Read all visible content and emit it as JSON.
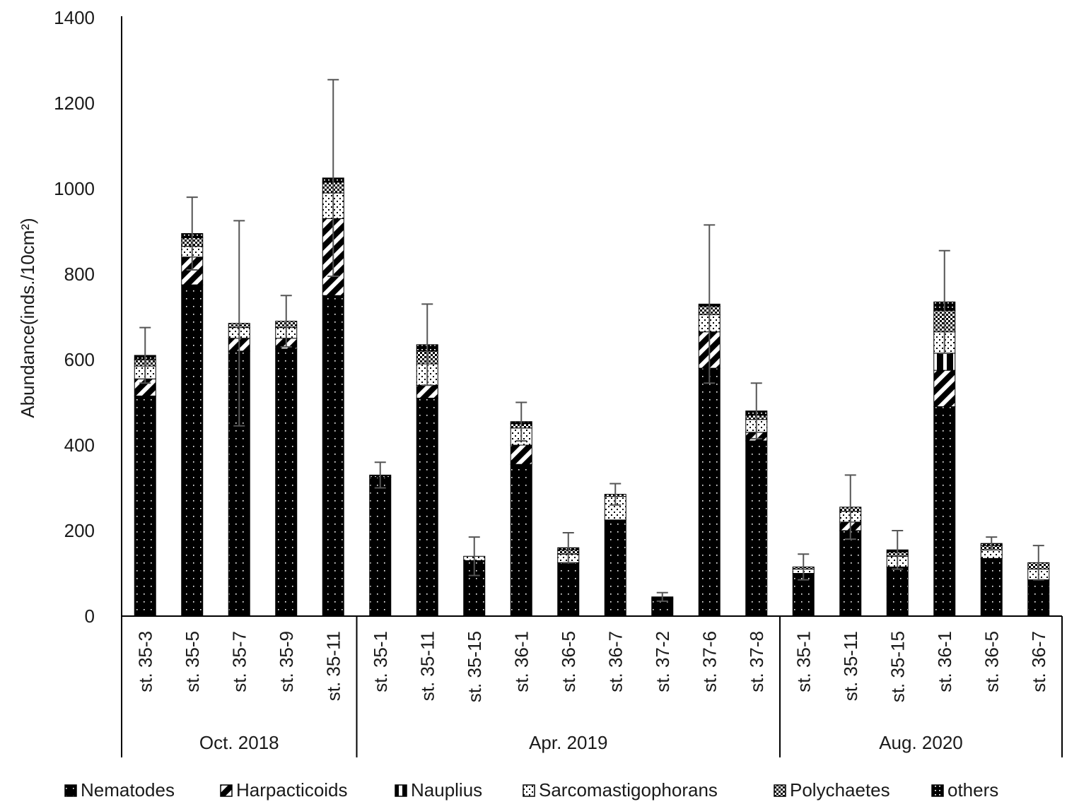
{
  "chart_data": {
    "type": "bar",
    "stacked": true,
    "ylabel": "Abundance(inds./10cm²)",
    "ylim": [
      0,
      1400
    ],
    "yticks": [
      0,
      200,
      400,
      600,
      800,
      1000,
      1200,
      1400
    ],
    "grid": false,
    "legend_position": "bottom",
    "groups": [
      {
        "label": "Oct. 2018",
        "count": 5
      },
      {
        "label": "Apr. 2019",
        "count": 9
      },
      {
        "label": "Aug. 2020",
        "count": 6
      }
    ],
    "categories": [
      "st. 35-3",
      "st. 35-5",
      "st. 35-7",
      "st. 35-9",
      "st. 35-11",
      "st. 35-1",
      "st. 35-11",
      "st. 35-15",
      "st. 36-1",
      "st. 36-5",
      "st. 36-7",
      "st. 37-2",
      "st. 37-6",
      "st. 37-8",
      "st. 35-1",
      "st. 35-11",
      "st. 35-15",
      "st. 36-1",
      "st. 36-5",
      "st. 36-7"
    ],
    "series": [
      {
        "name": "Nematodes",
        "pattern": "dots",
        "values": [
          515,
          775,
          620,
          625,
          750,
          325,
          510,
          130,
          355,
          125,
          225,
          40,
          580,
          410,
          100,
          200,
          115,
          490,
          135,
          85
        ]
      },
      {
        "name": "Harpacticoids",
        "pattern": "diagonal",
        "values": [
          40,
          65,
          30,
          25,
          180,
          0,
          30,
          0,
          45,
          0,
          0,
          0,
          85,
          20,
          0,
          20,
          0,
          85,
          0,
          0
        ]
      },
      {
        "name": "Nauplius",
        "pattern": "vertical",
        "values": [
          0,
          0,
          0,
          0,
          0,
          0,
          0,
          0,
          0,
          0,
          0,
          0,
          0,
          0,
          0,
          0,
          0,
          40,
          0,
          0
        ]
      },
      {
        "name": "Sarcomastigophorans",
        "pattern": "hatch-white",
        "values": [
          30,
          25,
          25,
          25,
          60,
          0,
          50,
          10,
          40,
          20,
          55,
          0,
          40,
          30,
          10,
          25,
          25,
          50,
          20,
          25
        ]
      },
      {
        "name": "Polychaetes",
        "pattern": "crosshatch",
        "values": [
          15,
          20,
          10,
          15,
          25,
          0,
          30,
          0,
          10,
          10,
          5,
          0,
          20,
          10,
          5,
          10,
          10,
          50,
          10,
          15
        ]
      },
      {
        "name": "others",
        "pattern": "solid",
        "values": [
          10,
          10,
          0,
          0,
          10,
          5,
          15,
          0,
          5,
          5,
          0,
          5,
          5,
          10,
          0,
          0,
          5,
          20,
          5,
          0
        ]
      }
    ],
    "error_bars": [
      65,
      85,
      240,
      60,
      230,
      30,
      95,
      45,
      45,
      35,
      25,
      10,
      185,
      65,
      30,
      75,
      45,
      120,
      15,
      40
    ]
  }
}
